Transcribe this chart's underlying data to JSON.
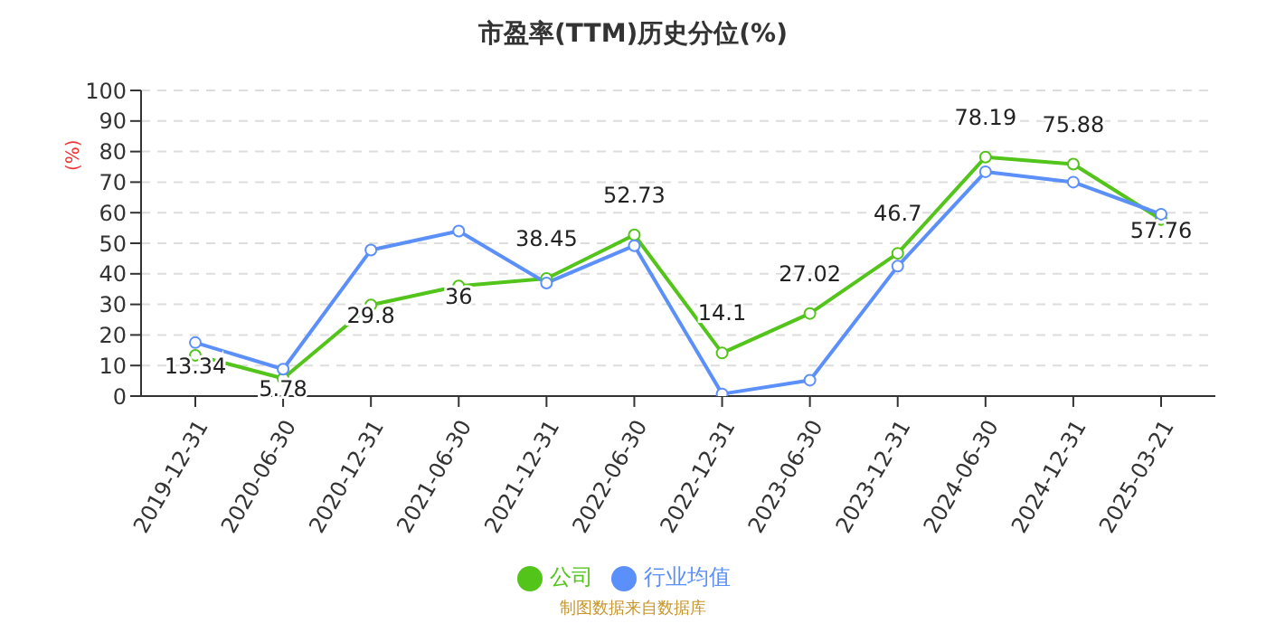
{
  "chart_data": {
    "type": "line",
    "title": "市盈率(TTM)历史分位(%)",
    "ylabel": "(%)",
    "categories": [
      "2019-12-31",
      "2020-06-30",
      "2020-12-31",
      "2021-06-30",
      "2021-12-31",
      "2022-06-30",
      "2022-12-31",
      "2023-06-30",
      "2023-12-31",
      "2024-06-30",
      "2024-12-31",
      "2025-03-21"
    ],
    "series": [
      {
        "name": "公司",
        "color": "#52c41a",
        "values": [
          13.34,
          5.78,
          29.8,
          36,
          38.45,
          52.73,
          14.1,
          27.02,
          46.7,
          78.19,
          75.88,
          57.76
        ],
        "value_labels": [
          "13.34",
          "5.78",
          "29.8",
          "36",
          "38.45",
          "52.73",
          "14.1",
          "27.02",
          "46.7",
          "78.19",
          "75.88",
          "57.76"
        ]
      },
      {
        "name": "行业均值",
        "color": "#5b8ff9",
        "values": [
          17.5,
          8.8,
          47.8,
          54,
          37,
          49.2,
          0.7,
          5.2,
          42.5,
          73.4,
          70,
          59.5
        ]
      }
    ],
    "ylim": [
      0,
      100
    ],
    "yticks": [
      0,
      10,
      20,
      30,
      40,
      50,
      60,
      70,
      80,
      90,
      100
    ],
    "grid": "y",
    "legend": "bottom",
    "marker": "circle",
    "line_style": "solid",
    "annotations": [
      "制图数据来自数据库"
    ]
  }
}
